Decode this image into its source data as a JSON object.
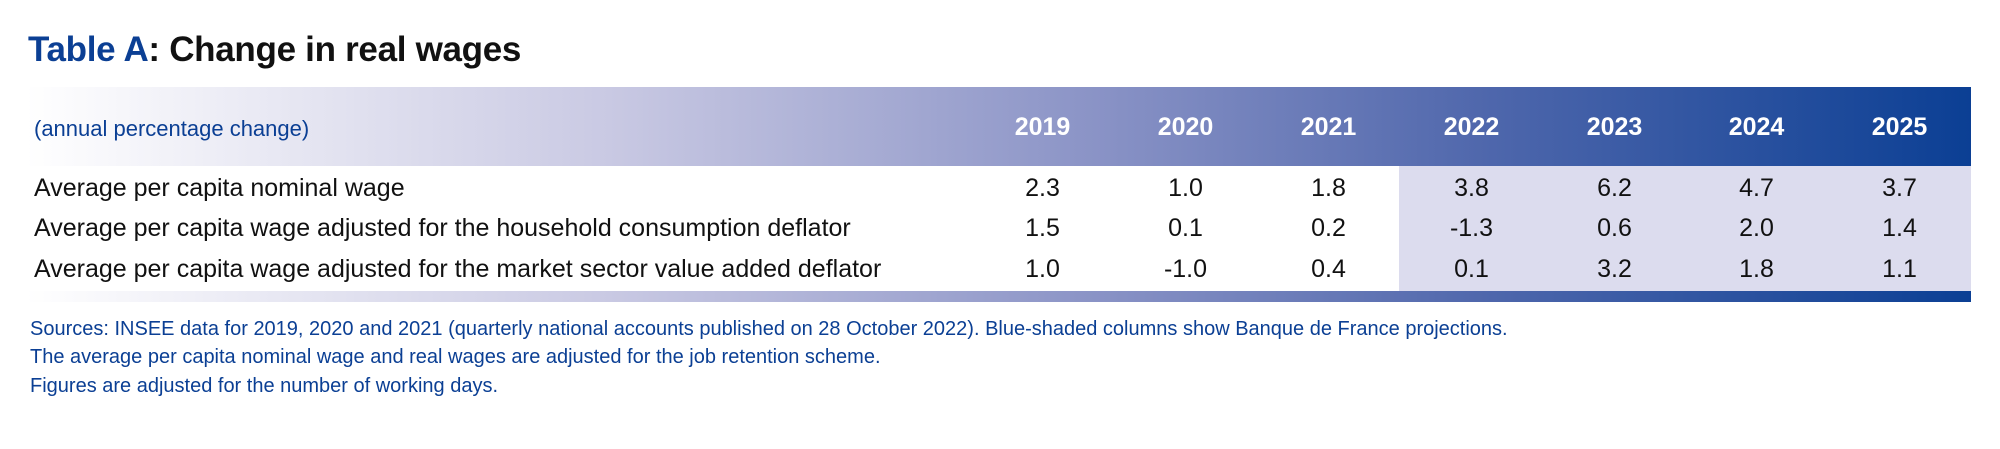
{
  "title": {
    "label": "Table A",
    "text": ": Change in real wages"
  },
  "unit": "(annual percentage change)",
  "years": [
    "2019",
    "2020",
    "2021",
    "2022",
    "2023",
    "2024",
    "2025"
  ],
  "projection_years": [
    "2022",
    "2023",
    "2024",
    "2025"
  ],
  "colors": {
    "brand_blue": "#0b3f94",
    "projection_shade": "#dcdcee"
  },
  "rows": [
    {
      "label": "Average per capita nominal wage",
      "values": [
        "2.3",
        "1.0",
        "1.8",
        "3.8",
        "6.2",
        "4.7",
        "3.7"
      ]
    },
    {
      "label": "Average per capita wage adjusted for the household consumption deflator",
      "values": [
        "1.5",
        "0.1",
        "0.2",
        "-1.3",
        "0.6",
        "2.0",
        "1.4"
      ]
    },
    {
      "label": "Average per capita wage adjusted for the market sector value added deflator",
      "values": [
        "1.0",
        "-1.0",
        "0.4",
        "0.1",
        "3.2",
        "1.8",
        "1.1"
      ]
    }
  ],
  "notes": [
    "Sources: INSEE data for 2019, 2020 and 2021 (quarterly national accounts published on 28 October 2022). Blue-shaded columns show Banque de France projections.",
    "The average per capita nominal wage and real wages are adjusted for the job retention scheme.",
    "Figures are adjusted for the number of working days."
  ]
}
